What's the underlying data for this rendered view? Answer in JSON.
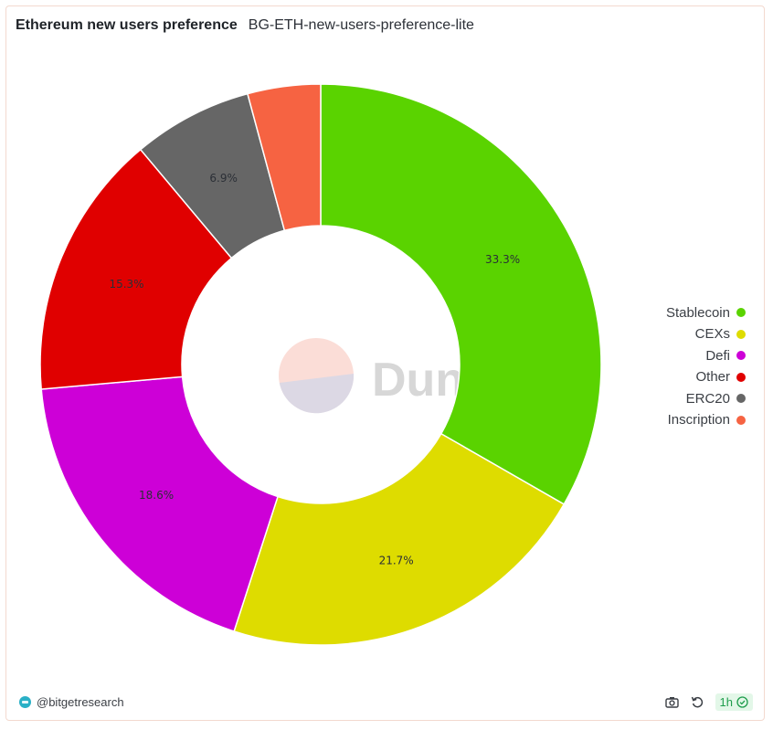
{
  "header": {
    "title": "Ethereum new users preference",
    "subtitle": "BG-ETH-new-users-preference-lite"
  },
  "watermark": {
    "text": "Dune"
  },
  "footer": {
    "author": "@bitgetresearch",
    "refresh_interval": "1h",
    "icons": [
      "camera-icon",
      "refresh-icon",
      "check-circle-icon"
    ]
  },
  "chart_data": {
    "type": "pie",
    "donut": true,
    "legend_position": "right",
    "slices": [
      {
        "label": "Stablecoin",
        "value": 33.3,
        "value_label": "33.3%",
        "color": "#5ad300"
      },
      {
        "label": "CEXs",
        "value": 21.7,
        "value_label": "21.7%",
        "color": "#dedc00"
      },
      {
        "label": "Defi",
        "value": 18.6,
        "value_label": "18.6%",
        "color": "#cd00d7"
      },
      {
        "label": "Other",
        "value": 15.3,
        "value_label": "15.3%",
        "color": "#e00000"
      },
      {
        "label": "ERC20",
        "value": 6.9,
        "value_label": "6.9%",
        "color": "#666666"
      },
      {
        "label": "Inscription",
        "value": 4.2,
        "value_label": "",
        "color": "#f66342"
      }
    ]
  }
}
